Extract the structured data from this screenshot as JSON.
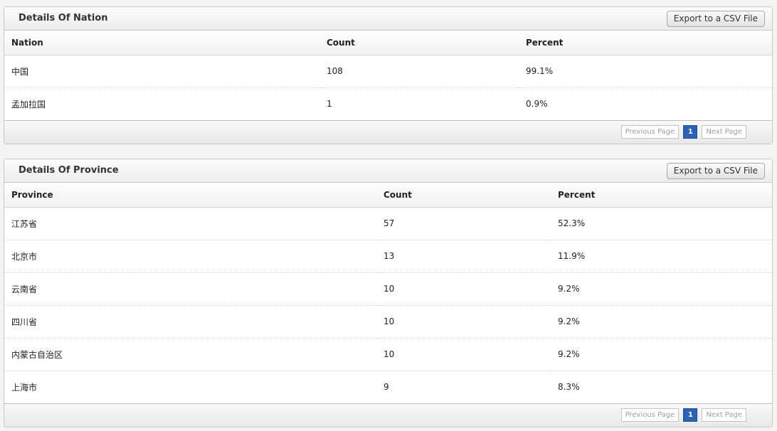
{
  "nation_panel": {
    "title": "Details Of Nation",
    "export_label": "Export to a CSV File",
    "columns": [
      "Nation",
      "Count",
      "Percent"
    ],
    "rows": [
      {
        "name": "中国",
        "count": "108",
        "percent": "99.1%"
      },
      {
        "name": "孟加拉国",
        "count": "1",
        "percent": "0.9%"
      }
    ],
    "pager": {
      "prev_label": "Previous Page",
      "current_page": "1",
      "next_label": "Next Page"
    }
  },
  "province_panel": {
    "title": "Details Of Province",
    "export_label": "Export to a CSV File",
    "columns": [
      "Province",
      "Count",
      "Percent"
    ],
    "rows": [
      {
        "name": "江苏省",
        "count": "57",
        "percent": "52.3%"
      },
      {
        "name": "北京市",
        "count": "13",
        "percent": "11.9%"
      },
      {
        "name": "云南省",
        "count": "10",
        "percent": "9.2%"
      },
      {
        "name": "四川省",
        "count": "10",
        "percent": "9.2%"
      },
      {
        "name": "内蒙古自治区",
        "count": "10",
        "percent": "9.2%"
      },
      {
        "name": "上海市",
        "count": "9",
        "percent": "8.3%"
      }
    ],
    "pager": {
      "prev_label": "Previous Page",
      "current_page": "1",
      "next_label": "Next Page"
    }
  },
  "colors": {
    "current_page_bg": "#2a62b8",
    "panel_border": "#c8c8c8"
  }
}
